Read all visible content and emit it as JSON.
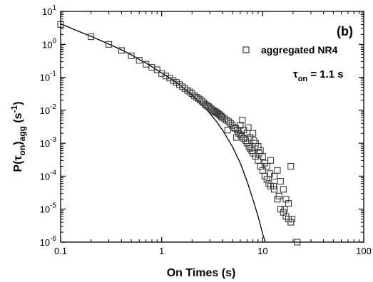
{
  "chart_data": {
    "type": "scatter",
    "panel_label": "(b)",
    "xlabel": "On Times (s)",
    "ylabel": {
      "prefix": "P(",
      "tau": "τ",
      "on_sub": "on",
      "close": ")",
      "agg_sub": "agg",
      "unit_open": " (s",
      "unit_sup": "-1",
      "unit_close": ")"
    },
    "x_scale": "log",
    "y_scale": "log",
    "xlim": [
      0.1,
      100
    ],
    "ylim": [
      1e-06,
      10
    ],
    "x_ticks": [
      {
        "value": 0.1,
        "label": "0.1"
      },
      {
        "value": 1,
        "label": "1"
      },
      {
        "value": 10,
        "label": "10"
      },
      {
        "value": 100,
        "label": "100"
      }
    ],
    "y_ticks": [
      {
        "value": 10,
        "base": "10",
        "exp": "1"
      },
      {
        "value": 1,
        "base": "10",
        "exp": "0"
      },
      {
        "value": 0.1,
        "base": "10",
        "exp": "-1"
      },
      {
        "value": 0.01,
        "base": "10",
        "exp": "-2"
      },
      {
        "value": 0.001,
        "base": "10",
        "exp": "-3"
      },
      {
        "value": 0.0001,
        "base": "10",
        "exp": "-4"
      },
      {
        "value": 1e-05,
        "base": "10",
        "exp": "-5"
      },
      {
        "value": 1e-06,
        "base": "10",
        "exp": "-6"
      }
    ],
    "legend": {
      "position": "top-right",
      "entries": [
        {
          "name": "aggregated NR4",
          "marker": "open-square"
        }
      ]
    },
    "annotation": {
      "tau": "τ",
      "sub": "on",
      "text": " = 1.1 s"
    },
    "series": [
      {
        "name": "aggregated NR4",
        "marker": "open-square",
        "points": [
          [
            0.1,
            4.0
          ],
          [
            0.2,
            1.7
          ],
          [
            0.3,
            1.0
          ],
          [
            0.4,
            0.65
          ],
          [
            0.5,
            0.45
          ],
          [
            0.6,
            0.33
          ],
          [
            0.7,
            0.25
          ],
          [
            0.8,
            0.2
          ],
          [
            0.9,
            0.17
          ],
          [
            1.0,
            0.13
          ],
          [
            1.1,
            0.11
          ],
          [
            1.2,
            0.095
          ],
          [
            1.3,
            0.08
          ],
          [
            1.4,
            0.07
          ],
          [
            1.5,
            0.06
          ],
          [
            1.6,
            0.052
          ],
          [
            1.7,
            0.046
          ],
          [
            1.8,
            0.04
          ],
          [
            1.9,
            0.036
          ],
          [
            2.0,
            0.032
          ],
          [
            2.1,
            0.028
          ],
          [
            2.2,
            0.025
          ],
          [
            2.3,
            0.023
          ],
          [
            2.4,
            0.021
          ],
          [
            2.5,
            0.019
          ],
          [
            2.6,
            0.017
          ],
          [
            2.7,
            0.015
          ],
          [
            2.8,
            0.014
          ],
          [
            2.9,
            0.013
          ],
          [
            3.0,
            0.012
          ],
          [
            3.1,
            0.011
          ],
          [
            3.2,
            0.01
          ],
          [
            3.3,
            0.0095
          ],
          [
            3.4,
            0.009
          ],
          [
            3.5,
            0.0085
          ],
          [
            3.6,
            0.008
          ],
          [
            3.7,
            0.0075
          ],
          [
            3.8,
            0.007
          ],
          [
            3.9,
            0.0065
          ],
          [
            4.0,
            0.006
          ],
          [
            4.2,
            0.0055
          ],
          [
            4.4,
            0.005
          ],
          [
            4.6,
            0.0045
          ],
          [
            4.8,
            0.004
          ],
          [
            5.0,
            0.0035
          ],
          [
            5.2,
            0.003
          ],
          [
            5.4,
            0.0028
          ],
          [
            5.6,
            0.0025
          ],
          [
            5.8,
            0.002
          ],
          [
            6.0,
            0.0018
          ],
          [
            6.2,
            0.0016
          ],
          [
            6.5,
            0.0014
          ],
          [
            6.8,
            0.0012
          ],
          [
            7.0,
            0.001
          ],
          [
            7.3,
            0.0008
          ],
          [
            7.5,
            0.0007
          ],
          [
            7.8,
            0.0006
          ],
          [
            8.0,
            0.0005
          ],
          [
            8.5,
            0.0004
          ],
          [
            9.0,
            0.0003
          ],
          [
            9.5,
            0.0002
          ],
          [
            10.0,
            0.00015
          ],
          [
            10.5,
            0.0001
          ],
          [
            11.0,
            8e-05
          ],
          [
            11.5,
            6e-05
          ],
          [
            12.0,
            5e-05
          ],
          [
            13.0,
            4e-05
          ],
          [
            14.0,
            2e-05
          ],
          [
            15.0,
            1e-05
          ],
          [
            16.0,
            8e-06
          ],
          [
            17.0,
            6e-06
          ],
          [
            18.0,
            5e-06
          ],
          [
            19.0,
            4e-06
          ],
          [
            22.0,
            1e-06
          ],
          [
            4.5,
            0.0025
          ],
          [
            5.5,
            0.0015
          ],
          [
            6.0,
            0.0035
          ],
          [
            6.5,
            0.0025
          ],
          [
            7.0,
            0.002
          ],
          [
            7.5,
            0.0015
          ],
          [
            8.0,
            0.002
          ],
          [
            8.5,
            0.001
          ],
          [
            9.0,
            0.0008
          ],
          [
            9.5,
            0.0006
          ],
          [
            10.0,
            0.0004
          ],
          [
            11.0,
            0.0002
          ],
          [
            12.0,
            0.0003
          ],
          [
            13.0,
            0.0001
          ],
          [
            14.0,
            0.00015
          ],
          [
            15.0,
            7e-05
          ],
          [
            16.0,
            4e-05
          ],
          [
            17.0,
            2e-05
          ],
          [
            18.0,
            1.5e-05
          ],
          [
            19.0,
            0.0002
          ],
          [
            6.3,
            0.005
          ],
          [
            7.2,
            0.003
          ],
          [
            8.2,
            0.0012
          ],
          [
            9.2,
            0.0005
          ],
          [
            10.5,
            0.00025
          ],
          [
            11.8,
            0.00012
          ],
          [
            12.8,
            5e-05
          ],
          [
            14.5,
            2.5e-05
          ],
          [
            16.5,
            1e-05
          ],
          [
            19.5,
            5e-06
          ]
        ]
      }
    ],
    "fit": {
      "style": "solid-line",
      "points": [
        [
          0.1,
          4.2
        ],
        [
          0.15,
          2.5
        ],
        [
          0.2,
          1.75
        ],
        [
          0.3,
          1.02
        ],
        [
          0.4,
          0.68
        ],
        [
          0.5,
          0.48
        ],
        [
          0.6,
          0.35
        ],
        [
          0.7,
          0.27
        ],
        [
          0.8,
          0.21
        ],
        [
          1.0,
          0.135
        ],
        [
          1.2,
          0.095
        ],
        [
          1.5,
          0.06
        ],
        [
          2.0,
          0.029
        ],
        [
          2.5,
          0.015
        ],
        [
          3.0,
          0.008
        ],
        [
          3.5,
          0.0045
        ],
        [
          4.0,
          0.0025
        ],
        [
          5.0,
          0.0008
        ],
        [
          6.0,
          0.00025
        ],
        [
          7.0,
          7e-05
        ],
        [
          8.0,
          2e-05
        ],
        [
          9.0,
          6e-06
        ],
        [
          10.0,
          1.8e-06
        ],
        [
          10.6,
          1e-06
        ]
      ]
    },
    "colors": {
      "axis": "#000000",
      "marker_stroke": "#3a3a3a",
      "line": "#000000"
    }
  }
}
